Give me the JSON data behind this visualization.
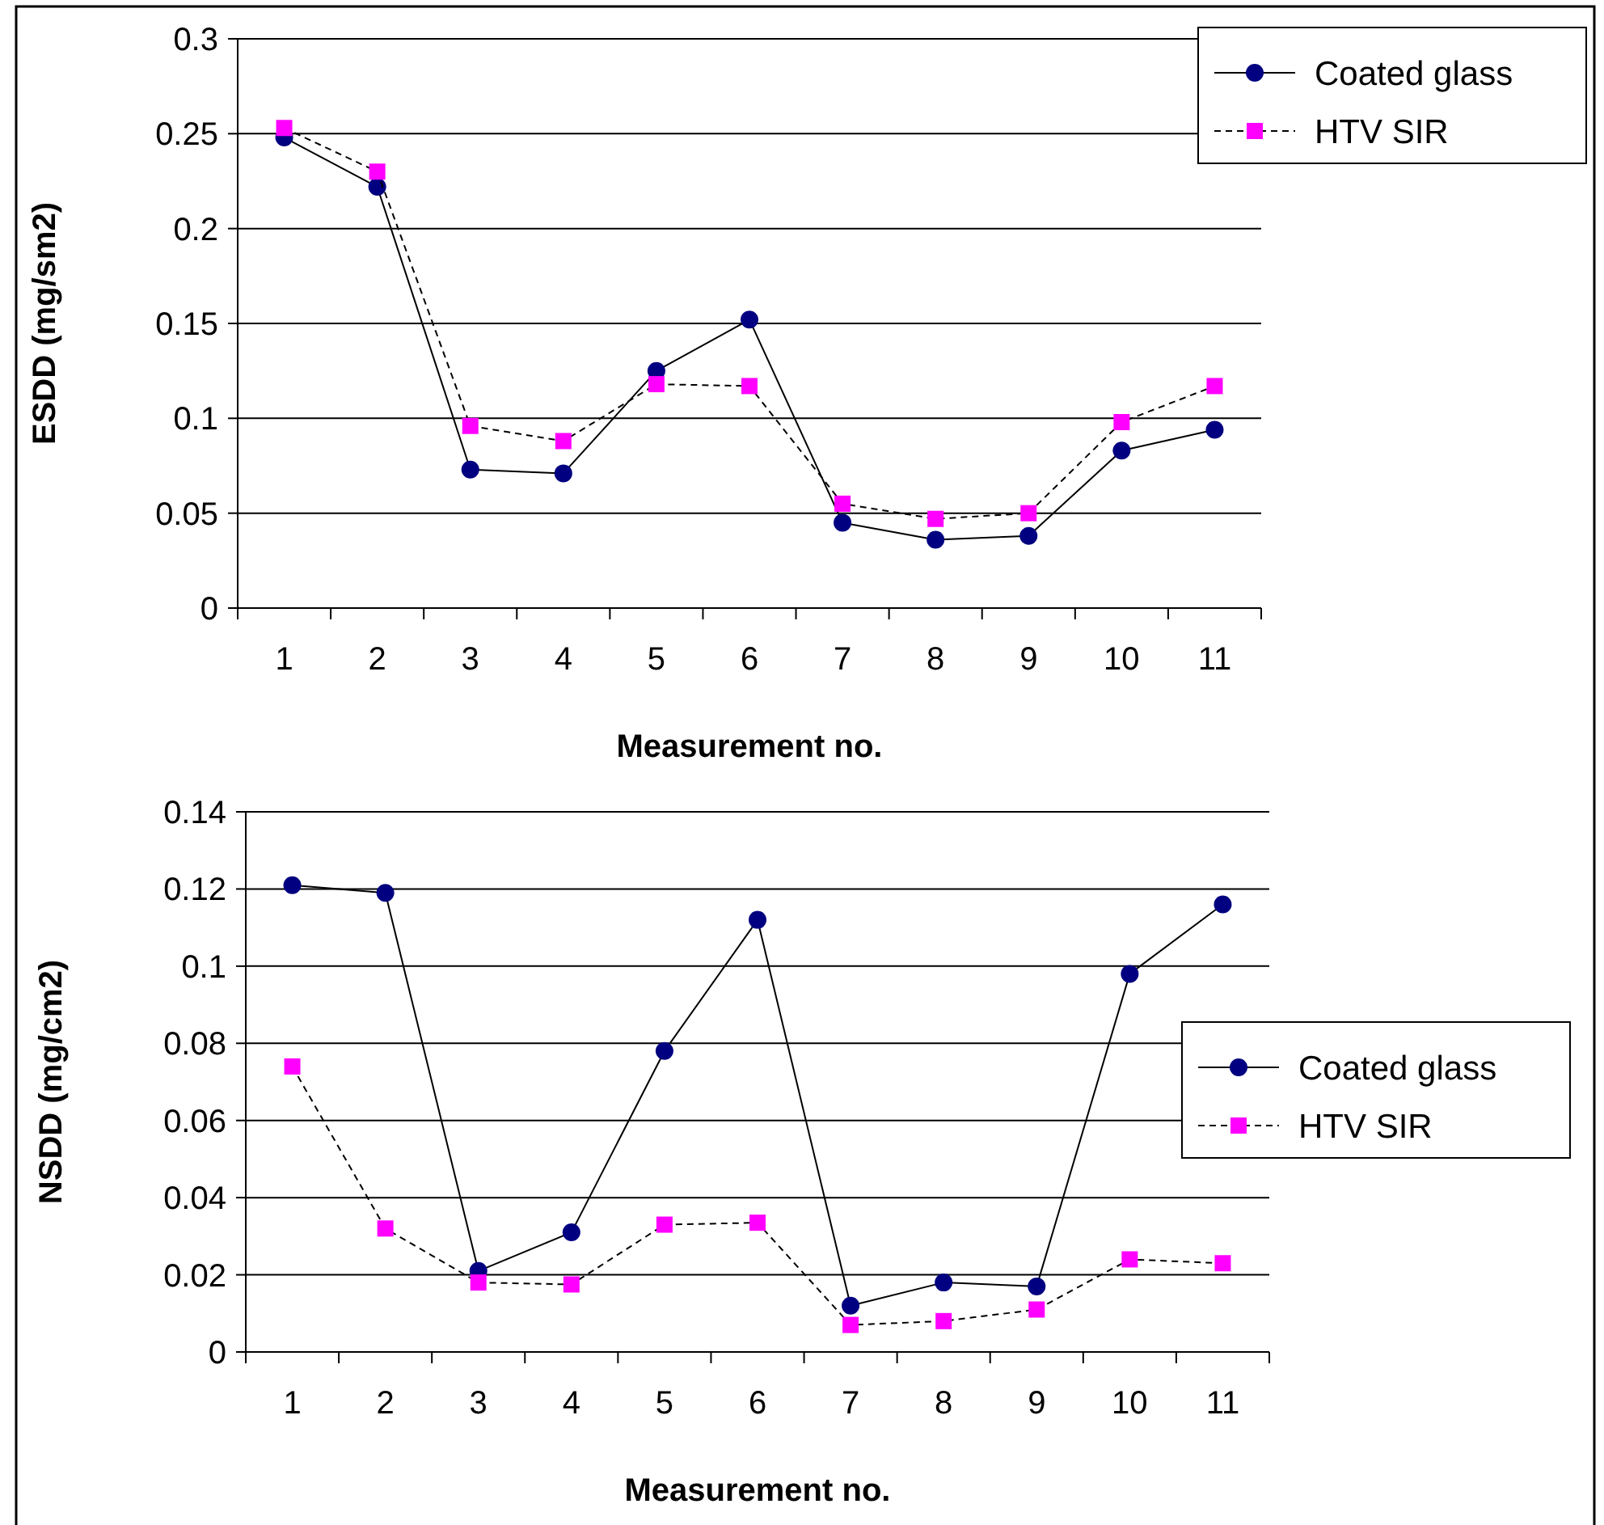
{
  "chart_data": [
    {
      "type": "line",
      "xlabel": "Measurement no.",
      "ylabel": "ESDD (mg/sm2)",
      "categories": [
        "1",
        "2",
        "3",
        "4",
        "5",
        "6",
        "7",
        "8",
        "9",
        "10",
        "11"
      ],
      "ylim": [
        0,
        0.3
      ],
      "yticks": [
        0,
        0.05,
        0.1,
        0.15,
        0.2,
        0.25,
        0.3
      ],
      "grid": "y",
      "legend": "top right",
      "series": [
        {
          "name": "Coated glass",
          "color": "#000080",
          "marker": "circle",
          "line_style": "solid",
          "values": [
            0.248,
            0.222,
            0.073,
            0.071,
            0.125,
            0.152,
            0.045,
            0.036,
            0.038,
            0.083,
            0.094
          ]
        },
        {
          "name": "HTV SIR",
          "color": "#ff00ff",
          "marker": "square",
          "line_style": "dashed",
          "values": [
            0.253,
            0.23,
            0.096,
            0.088,
            0.118,
            0.117,
            0.055,
            0.047,
            0.05,
            0.098,
            0.117
          ]
        }
      ]
    },
    {
      "type": "line",
      "xlabel": "Measurement no.",
      "ylabel": "NSDD (mg/cm2)",
      "categories": [
        "1",
        "2",
        "3",
        "4",
        "5",
        "6",
        "7",
        "8",
        "9",
        "10",
        "11"
      ],
      "ylim": [
        0,
        0.14
      ],
      "yticks": [
        0,
        0.02,
        0.04,
        0.06,
        0.08,
        0.1,
        0.12,
        0.14
      ],
      "grid": "y",
      "legend": "right",
      "series": [
        {
          "name": "Coated glass",
          "color": "#000080",
          "marker": "circle",
          "line_style": "solid",
          "values": [
            0.121,
            0.119,
            0.021,
            0.031,
            0.078,
            0.112,
            0.012,
            0.018,
            0.017,
            0.098,
            0.116
          ]
        },
        {
          "name": "HTV SIR",
          "color": "#ff00ff",
          "marker": "square",
          "line_style": "dashed",
          "values": [
            0.074,
            0.032,
            0.018,
            0.0175,
            0.033,
            0.0335,
            0.007,
            0.008,
            0.011,
            0.024,
            0.023
          ]
        }
      ]
    }
  ]
}
